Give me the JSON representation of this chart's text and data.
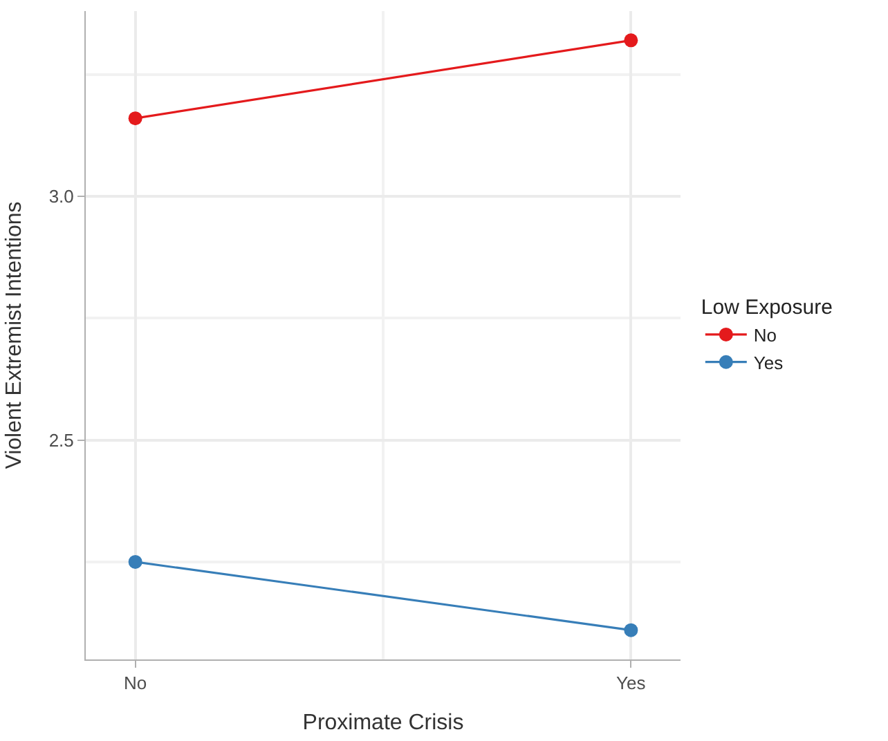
{
  "chart_data": {
    "type": "line",
    "xlabel": "Proximate Crisis",
    "ylabel": "Violent Extremist Intentions",
    "legend_title": "Low Exposure",
    "categories": [
      "No",
      "Yes"
    ],
    "series": [
      {
        "name": "No",
        "color": "#e41a1c",
        "values": [
          3.16,
          3.32
        ]
      },
      {
        "name": "Yes",
        "color": "#377eb8",
        "values": [
          2.25,
          2.11
        ]
      }
    ],
    "ylim": [
      2.05,
      3.38
    ],
    "yticks": [
      2.5,
      {
        "value": 3,
        "label": "3.0"
      }
    ],
    "grid": true,
    "legend": "right",
    "marker": "circle",
    "line_style": "solid"
  }
}
